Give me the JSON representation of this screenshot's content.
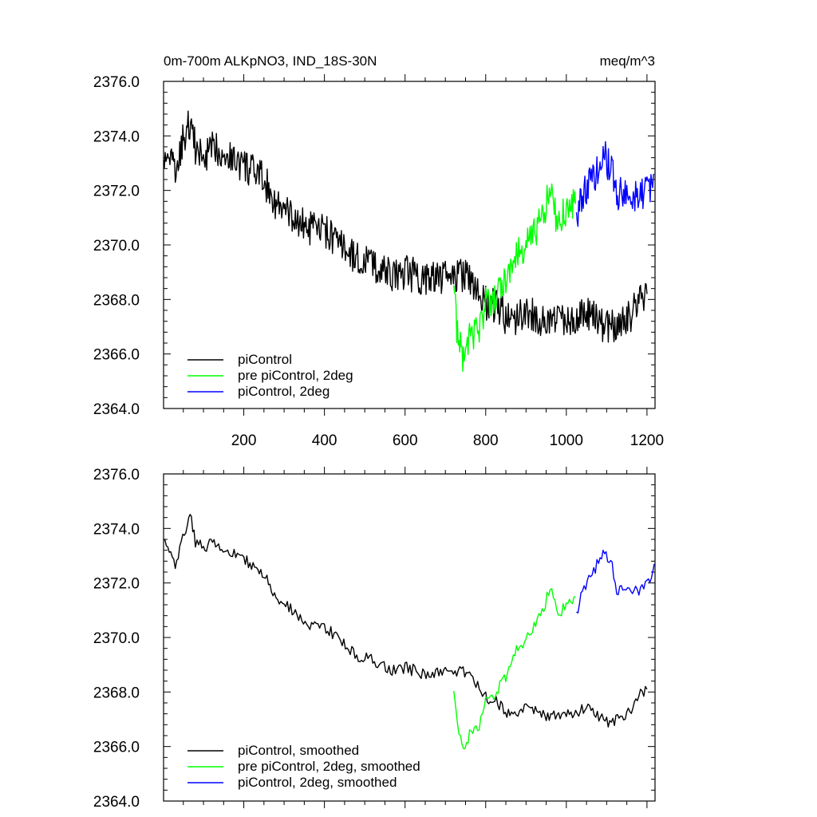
{
  "chart_data": [
    {
      "type": "line",
      "title_left": "0m-700m ALKpNO3, IND_18S-30N",
      "title_right": "meq/m^3",
      "xlim": [
        1,
        1220
      ],
      "ylim": [
        2364.0,
        2376.0
      ],
      "x_ticks": [
        200,
        400,
        600,
        800,
        1000,
        1200
      ],
      "x_tick_labels": [
        "200",
        "400",
        "600",
        "800",
        "1000",
        "1200"
      ],
      "y_ticks": [
        2364,
        2366,
        2368,
        2370,
        2372,
        2374,
        2376
      ],
      "y_tick_labels": [
        "2364.0",
        "2366.0",
        "2368.0",
        "2370.0",
        "2372.0",
        "2374.0",
        "2376.0"
      ],
      "legend_position": "bottom-left",
      "series": [
        {
          "name": "piControl",
          "color": "#000000",
          "x": [
            1,
            15,
            30,
            45,
            60,
            70,
            80,
            100,
            130,
            160,
            200,
            250,
            280,
            320,
            360,
            400,
            440,
            480,
            520,
            560,
            600,
            640,
            700,
            740,
            780,
            800,
            830,
            860,
            880,
            900,
            950,
            1000,
            1050,
            1100,
            1150,
            1180,
            1200
          ],
          "y": [
            2372.8,
            2373.4,
            2372.5,
            2373.6,
            2374.3,
            2374.5,
            2373.5,
            2373.2,
            2373.6,
            2373.3,
            2372.9,
            2372.4,
            2371.5,
            2371.0,
            2370.6,
            2370.5,
            2370.0,
            2369.5,
            2369.3,
            2368.9,
            2369.0,
            2368.8,
            2368.8,
            2368.9,
            2368.5,
            2367.9,
            2367.7,
            2367.2,
            2367.3,
            2367.6,
            2367.2,
            2367.3,
            2367.5,
            2367.0,
            2367.2,
            2368.0,
            2368.2
          ]
        },
        {
          "name": "pre piControl, 2deg",
          "color": "#00ff00",
          "x": [
            721,
            730,
            745,
            760,
            780,
            800,
            820,
            850,
            880,
            900,
            940,
            960,
            980,
            1000,
            1023
          ],
          "y": [
            2368.1,
            2366.8,
            2365.9,
            2366.5,
            2366.8,
            2367.8,
            2368.0,
            2368.6,
            2369.8,
            2370.0,
            2371.0,
            2371.9,
            2370.8,
            2371.3,
            2371.5
          ]
        },
        {
          "name": "piControl, 2deg",
          "color": "#0000ff",
          "x": [
            1025,
            1040,
            1060,
            1080,
            1095,
            1110,
            1125,
            1140,
            1160,
            1180,
            1200,
            1218
          ],
          "y": [
            2370.8,
            2371.8,
            2372.3,
            2372.8,
            2373.2,
            2372.9,
            2371.8,
            2371.9,
            2371.8,
            2371.7,
            2371.9,
            2372.6
          ]
        }
      ]
    },
    {
      "type": "line",
      "xlim": [
        1,
        1220
      ],
      "ylim": [
        2364.0,
        2376.0
      ],
      "x_ticks": [
        200,
        400,
        600,
        800,
        1000,
        1200
      ],
      "y_ticks": [
        2364,
        2366,
        2368,
        2370,
        2372,
        2374,
        2376
      ],
      "y_tick_labels": [
        "2364.0",
        "2366.0",
        "2368.0",
        "2370.0",
        "2372.0",
        "2374.0",
        "2376.0"
      ],
      "legend_position": "bottom-left",
      "series": [
        {
          "name": "piControl, smoothed",
          "color": "#000000",
          "x": [
            1,
            15,
            30,
            45,
            60,
            70,
            80,
            100,
            130,
            160,
            200,
            250,
            280,
            320,
            360,
            400,
            440,
            480,
            520,
            560,
            600,
            640,
            700,
            740,
            780,
            800,
            830,
            860,
            880,
            900,
            950,
            1000,
            1050,
            1100,
            1150,
            1180,
            1200
          ],
          "y": [
            2373.5,
            2373.2,
            2372.6,
            2373.4,
            2374.1,
            2374.4,
            2373.5,
            2373.3,
            2373.5,
            2373.2,
            2372.9,
            2372.3,
            2371.4,
            2371.0,
            2370.5,
            2370.4,
            2369.9,
            2369.3,
            2369.2,
            2368.8,
            2368.9,
            2368.7,
            2368.7,
            2368.8,
            2368.3,
            2367.8,
            2367.6,
            2367.1,
            2367.2,
            2367.5,
            2367.1,
            2367.2,
            2367.4,
            2366.9,
            2367.1,
            2367.9,
            2368.1
          ]
        },
        {
          "name": "pre piControl, 2deg, smoothed",
          "color": "#00ff00",
          "x": [
            721,
            730,
            745,
            760,
            780,
            800,
            820,
            850,
            880,
            900,
            940,
            960,
            980,
            1000,
            1023
          ],
          "y": [
            2367.9,
            2366.7,
            2365.8,
            2366.4,
            2366.6,
            2367.6,
            2367.9,
            2368.5,
            2369.7,
            2369.9,
            2370.9,
            2371.8,
            2370.8,
            2371.2,
            2371.5
          ]
        },
        {
          "name": "piControl, 2deg, smoothed",
          "color": "#0000ff",
          "x": [
            1025,
            1040,
            1060,
            1080,
            1095,
            1110,
            1125,
            1140,
            1160,
            1180,
            1200,
            1218
          ],
          "y": [
            2370.8,
            2371.7,
            2372.2,
            2372.8,
            2373.1,
            2372.9,
            2371.7,
            2371.9,
            2371.8,
            2371.6,
            2371.9,
            2372.7
          ]
        }
      ]
    }
  ]
}
